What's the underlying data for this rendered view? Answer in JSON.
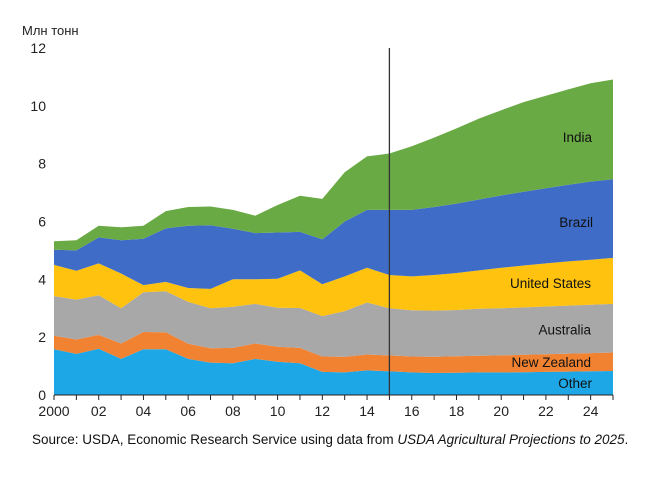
{
  "chart_data": {
    "type": "area",
    "stacked": true,
    "unit_label": "Млн тонн",
    "x": [
      2000,
      2001,
      2002,
      2003,
      2004,
      2005,
      2006,
      2007,
      2008,
      2009,
      2010,
      2011,
      2012,
      2013,
      2014,
      2015,
      2016,
      2017,
      2018,
      2019,
      2020,
      2021,
      2022,
      2023,
      2024,
      2025
    ],
    "x_tick_labels": [
      {
        "x": 2000,
        "label": "2000"
      },
      {
        "x": 2002,
        "label": "02"
      },
      {
        "x": 2004,
        "label": "04"
      },
      {
        "x": 2006,
        "label": "06"
      },
      {
        "x": 2008,
        "label": "08"
      },
      {
        "x": 2010,
        "label": "10"
      },
      {
        "x": 2012,
        "label": "12"
      },
      {
        "x": 2014,
        "label": "14"
      },
      {
        "x": 2016,
        "label": "16"
      },
      {
        "x": 2018,
        "label": "18"
      },
      {
        "x": 2020,
        "label": "20"
      },
      {
        "x": 2022,
        "label": "22"
      },
      {
        "x": 2024,
        "label": "24"
      }
    ],
    "y_ticks": [
      "0",
      "2",
      "4",
      "6",
      "8",
      "10",
      "12"
    ],
    "ylim": [
      0,
      12
    ],
    "xlim": [
      2000,
      2025
    ],
    "projection_start": 2015,
    "series": [
      {
        "name": "Other",
        "color": "#1ea7e6",
        "values": [
          1.58,
          1.42,
          1.6,
          1.25,
          1.58,
          1.58,
          1.25,
          1.12,
          1.1,
          1.25,
          1.15,
          1.1,
          0.8,
          0.78,
          0.85,
          0.82,
          0.78,
          0.76,
          0.77,
          0.78,
          0.78,
          0.79,
          0.8,
          0.81,
          0.82,
          0.83
        ]
      },
      {
        "name": "New Zealand",
        "color": "#f08232",
        "values": [
          0.47,
          0.5,
          0.48,
          0.53,
          0.6,
          0.59,
          0.52,
          0.5,
          0.53,
          0.53,
          0.52,
          0.53,
          0.53,
          0.54,
          0.55,
          0.55,
          0.55,
          0.56,
          0.57,
          0.58,
          0.59,
          0.6,
          0.61,
          0.62,
          0.63,
          0.64
        ]
      },
      {
        "name": "Australia",
        "color": "#a8a8a8",
        "values": [
          1.37,
          1.38,
          1.37,
          1.22,
          1.37,
          1.42,
          1.45,
          1.38,
          1.42,
          1.37,
          1.35,
          1.38,
          1.4,
          1.58,
          1.8,
          1.63,
          1.6,
          1.6,
          1.6,
          1.62,
          1.63,
          1.64,
          1.65,
          1.66,
          1.67,
          1.68
        ]
      },
      {
        "name": "United States",
        "color": "#ffc20e",
        "values": [
          1.08,
          1.0,
          1.1,
          1.2,
          0.25,
          0.32,
          0.48,
          0.67,
          0.95,
          0.85,
          1.0,
          1.3,
          1.1,
          1.2,
          1.2,
          1.15,
          1.17,
          1.23,
          1.28,
          1.33,
          1.4,
          1.45,
          1.49,
          1.53,
          1.56,
          1.59
        ]
      },
      {
        "name": "Brazil",
        "color": "#3f6cc7",
        "values": [
          0.52,
          0.7,
          0.9,
          1.15,
          1.6,
          1.85,
          2.15,
          2.2,
          1.75,
          1.6,
          1.6,
          1.33,
          1.55,
          1.9,
          2.0,
          2.25,
          2.3,
          2.35,
          2.4,
          2.45,
          2.5,
          2.55,
          2.6,
          2.65,
          2.7,
          2.72
        ]
      },
      {
        "name": "India",
        "color": "#6aaa45",
        "values": [
          0.3,
          0.35,
          0.4,
          0.45,
          0.45,
          0.6,
          0.65,
          0.65,
          0.65,
          0.6,
          0.95,
          1.25,
          1.4,
          1.7,
          1.85,
          1.95,
          2.2,
          2.4,
          2.6,
          2.8,
          2.95,
          3.1,
          3.2,
          3.3,
          3.4,
          3.45
        ]
      }
    ]
  },
  "source_text": {
    "prefix": "Source: USDA, Economic Research Service using data from ",
    "italic": "USDA Agricultural Projections to 2025",
    "suffix": "."
  }
}
